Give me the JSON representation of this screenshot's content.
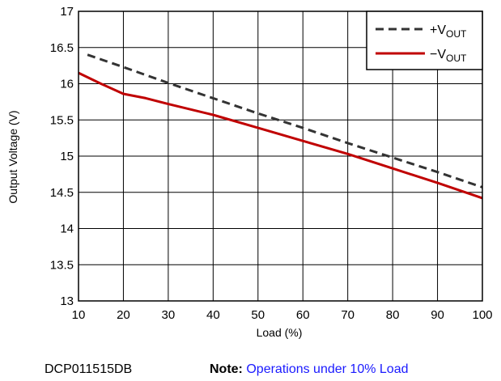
{
  "chart_data": {
    "type": "line",
    "title": "",
    "xlabel": "Load (%)",
    "ylabel": "Output Voltage (V)",
    "xlim": [
      10,
      100
    ],
    "ylim": [
      13,
      17
    ],
    "grid": true,
    "legend_position": "top-right",
    "x_ticks": [
      "10",
      "20",
      "30",
      "40",
      "50",
      "60",
      "70",
      "80",
      "90",
      "100"
    ],
    "y_ticks": [
      "13",
      "13.5",
      "14",
      "14.5",
      "15",
      "15.5",
      "16",
      "16.5",
      "17"
    ],
    "series": [
      {
        "name": "+VOUT",
        "legend_main": "+V",
        "legend_sub": "OUT",
        "style": "dashed",
        "color": "#333333",
        "x": [
          12,
          20,
          30,
          40,
          50,
          60,
          70,
          80,
          90,
          100
        ],
        "y": [
          16.4,
          16.23,
          16.01,
          15.8,
          15.59,
          15.39,
          15.18,
          14.98,
          14.78,
          14.57
        ]
      },
      {
        "name": "−VOUT",
        "legend_main": "−V",
        "legend_sub": "OUT",
        "style": "solid",
        "color": "#c00000",
        "x": [
          10,
          15,
          20,
          25,
          30,
          40,
          50,
          60,
          70,
          80,
          90,
          100
        ],
        "y": [
          16.15,
          16.0,
          15.86,
          15.8,
          15.72,
          15.57,
          15.39,
          15.21,
          15.03,
          14.83,
          14.63,
          14.42
        ]
      }
    ]
  },
  "footer": {
    "part_number": "DCP011515DB",
    "note_label": "Note:",
    "note_text": "Operations under 10% Load"
  }
}
